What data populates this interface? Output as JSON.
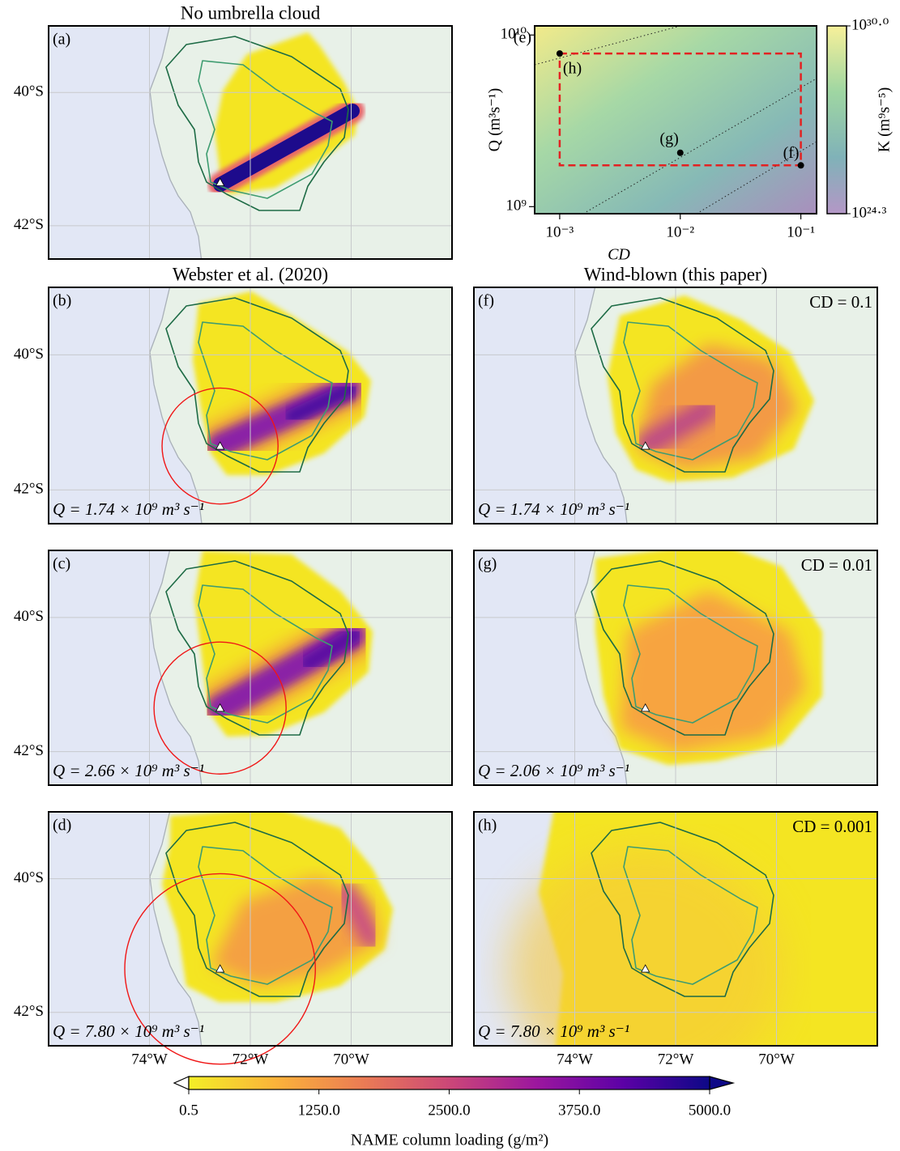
{
  "chart_data": [
    {
      "type": "map",
      "label": "(a)",
      "title": "No umbrella cloud",
      "xlim": [
        -76,
        -68
      ],
      "ylim": [
        -42.5,
        -39
      ],
      "xticks": [
        -74,
        -72,
        -70
      ],
      "yticks": [
        {
          "value": -40,
          "label": "40°S"
        },
        {
          "value": -42,
          "label": "42°S"
        }
      ],
      "vent": {
        "lon": -72.6,
        "lat": -41.35
      }
    },
    {
      "type": "scatter",
      "label": "(e)",
      "xlog": true,
      "ylog": true,
      "xlabel": "CD",
      "ylabel": "Q (m³s⁻¹)",
      "xlim": [
        0.00062,
        0.135
      ],
      "ylim": [
        910000000,
        11300000000
      ],
      "xticks": [
        {
          "value": 0.001,
          "label": "10⁻³"
        },
        {
          "value": 0.01,
          "label": "10⁻²"
        },
        {
          "value": 0.1,
          "label": "10⁻¹"
        }
      ],
      "yticks": [
        {
          "value": 1000000000,
          "label": "10⁹"
        },
        {
          "value": 10000000000,
          "label": "10¹⁰"
        }
      ],
      "x": [
        0.001,
        0.01,
        0.1
      ],
      "values": [
        7800000000,
        2060000000,
        1740000000
      ],
      "point_labels": [
        "(h)",
        "(g)",
        "(f)"
      ],
      "rectangle_color": "#e32222",
      "colorbar": {
        "label": "K (m⁹s⁻⁵)",
        "lim": [
          24.3,
          30.0
        ],
        "ticks": [
          {
            "value": 30.0,
            "label": "10³⁰·⁰"
          },
          {
            "value": 24.3,
            "label": "10²⁴·³"
          }
        ]
      }
    },
    {
      "type": "map",
      "label": "(b)",
      "title": "Webster et al. (2020)",
      "annotation": "Q = 1.74 × 10⁹ m³ s⁻¹",
      "umbrella_radius": 1.15,
      "xlim": [
        -76,
        -68
      ],
      "ylim": [
        -42.5,
        -39
      ],
      "xticks": [
        -74,
        -72,
        -70
      ],
      "yticks": [
        {
          "value": -40,
          "label": "40°S"
        },
        {
          "value": -42,
          "label": "42°S"
        }
      ],
      "vent": {
        "lon": -72.6,
        "lat": -41.35
      }
    },
    {
      "type": "map",
      "label": "(f)",
      "title": "Wind-blown (this paper)",
      "annotation": "Q = 1.74 × 10⁹ m³ s⁻¹",
      "parameter": "CD = 0.1",
      "xlim": [
        -76,
        -68
      ],
      "ylim": [
        -42.5,
        -39
      ],
      "xticks": [
        -74,
        -72,
        -70
      ],
      "yticks": [
        -40,
        -42
      ],
      "vent": {
        "lon": -72.6,
        "lat": -41.35
      }
    },
    {
      "type": "map",
      "label": "(c)",
      "annotation": "Q = 2.66 × 10⁹ m³ s⁻¹",
      "umbrella_radius": 1.31,
      "xlim": [
        -76,
        -68
      ],
      "ylim": [
        -42.5,
        -39
      ],
      "xticks": [
        -74,
        -72,
        -70
      ],
      "yticks": [
        {
          "value": -40,
          "label": "40°S"
        },
        {
          "value": -42,
          "label": "42°S"
        }
      ],
      "vent": {
        "lon": -72.6,
        "lat": -41.35
      }
    },
    {
      "type": "map",
      "label": "(g)",
      "annotation": "Q = 2.06 × 10⁹ m³ s⁻¹",
      "parameter": "CD = 0.01",
      "xlim": [
        -76,
        -68
      ],
      "ylim": [
        -42.5,
        -39
      ],
      "xticks": [
        -74,
        -72,
        -70
      ],
      "yticks": [
        -40,
        -42
      ],
      "vent": {
        "lon": -72.6,
        "lat": -41.35
      }
    },
    {
      "type": "map",
      "label": "(d)",
      "annotation": "Q = 7.80 × 10⁹ m³ s⁻¹",
      "umbrella_radius": 1.89,
      "xlim": [
        -76,
        -68
      ],
      "ylim": [
        -42.5,
        -39
      ],
      "xticks": [
        {
          "value": -74,
          "label": "74°W"
        },
        {
          "value": -72,
          "label": "72°W"
        },
        {
          "value": -70,
          "label": "70°W"
        }
      ],
      "yticks": [
        {
          "value": -40,
          "label": "40°S"
        },
        {
          "value": -42,
          "label": "42°S"
        }
      ],
      "vent": {
        "lon": -72.6,
        "lat": -41.35
      }
    },
    {
      "type": "map",
      "label": "(h)",
      "annotation": "Q = 7.80 × 10⁹ m³ s⁻¹",
      "parameter": "CD = 0.001",
      "xlim": [
        -76,
        -68
      ],
      "ylim": [
        -42.5,
        -39
      ],
      "xticks": [
        {
          "value": -74,
          "label": "74°W"
        },
        {
          "value": -72,
          "label": "72°W"
        },
        {
          "value": -70,
          "label": "70°W"
        }
      ],
      "yticks": [
        -40,
        -42
      ],
      "vent": {
        "lon": -72.6,
        "lat": -41.35
      }
    },
    {
      "type": "colorbar",
      "label": "NAME column loading (g/m²)",
      "xlim": [
        0.5,
        5000
      ],
      "xticks": [
        0.5,
        {
          "value": 1250,
          "label": "1250.0"
        },
        {
          "value": 2500,
          "label": "2500.0"
        },
        {
          "value": 3750,
          "label": "3750.0"
        },
        {
          "value": 5000,
          "label": "5000.0"
        }
      ],
      "colors": [
        "#f3ee27",
        "#fbb33a",
        "#eb7c54",
        "#cc4778",
        "#9c179e",
        "#5c01a6",
        "#0d0887"
      ]
    }
  ]
}
